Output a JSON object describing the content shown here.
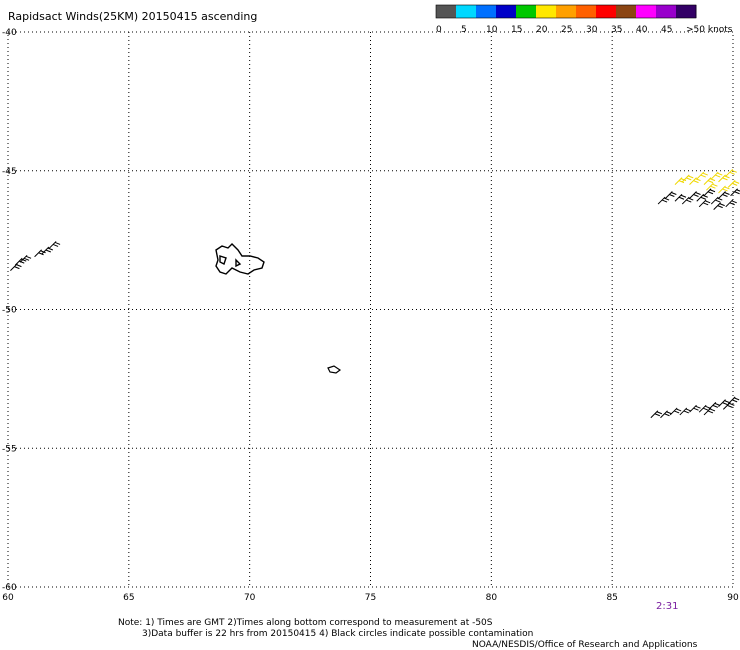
{
  "title": "Rapidsact Winds(25KM) 20150415 ascending",
  "legend": {
    "colors": [
      "#555555",
      "#00d8ff",
      "#0070ff",
      "#0000c8",
      "#00c800",
      "#ffe800",
      "#ffa000",
      "#ff6000",
      "#ff0000",
      "#8b4513",
      "#ff00ff",
      "#9900cc",
      "#330066"
    ],
    "labels": [
      "0",
      "5",
      "10",
      "15",
      "20",
      "25",
      "30",
      "35",
      "40",
      "45",
      ">50 knots"
    ]
  },
  "map": {
    "lon_range": [
      60,
      90
    ],
    "lat_range": [
      -40,
      -60
    ],
    "x_ticks": [
      "60",
      "65",
      "70",
      "75",
      "80",
      "85",
      "90"
    ],
    "y_ticks": [
      "-40",
      "-45",
      "-50",
      "-55",
      "-60"
    ],
    "grid": "dotted"
  },
  "time_label": "2:31",
  "notes": {
    "line1": "Note: 1) Times are GMT 2)Times along bottom correspond to measurement at -50S",
    "line2": "3)Data buffer is 22 hrs from 20150415 4) Black circles indicate possible contamination",
    "line3": "NOAA/NESDIS/Office of Research and Applications"
  },
  "wind_swaths": [
    {
      "name": "west-barbs",
      "color": "#000000",
      "points": [
        [
          60.1,
          -48.6
        ],
        [
          60.3,
          -48.4
        ],
        [
          60.5,
          -48.3
        ],
        [
          61.1,
          -48.1
        ],
        [
          61.4,
          -48.0
        ],
        [
          61.7,
          -47.8
        ]
      ]
    },
    {
      "name": "ne-yellow-barbs",
      "color": "#f0d800",
      "points": [
        [
          87.6,
          -45.5
        ],
        [
          87.9,
          -45.4
        ],
        [
          88.2,
          -45.5
        ],
        [
          88.5,
          -45.3
        ],
        [
          88.8,
          -45.5
        ],
        [
          89.1,
          -45.3
        ],
        [
          89.4,
          -45.4
        ],
        [
          89.7,
          -45.2
        ],
        [
          89.8,
          -45.6
        ],
        [
          88.9,
          -45.7
        ],
        [
          89.4,
          -45.8
        ]
      ]
    },
    {
      "name": "ne-black-barbs",
      "color": "#000000",
      "points": [
        [
          86.9,
          -46.2
        ],
        [
          87.2,
          -46.0
        ],
        [
          87.6,
          -46.1
        ],
        [
          87.9,
          -46.2
        ],
        [
          88.2,
          -46.0
        ],
        [
          88.5,
          -46.1
        ],
        [
          88.8,
          -45.9
        ],
        [
          89.1,
          -46.2
        ],
        [
          89.4,
          -46.0
        ],
        [
          89.7,
          -46.3
        ],
        [
          89.9,
          -45.9
        ],
        [
          88.6,
          -46.3
        ],
        [
          89.2,
          -46.4
        ]
      ]
    },
    {
      "name": "se-black-barbs",
      "color": "#000000",
      "points": [
        [
          86.6,
          -53.9
        ],
        [
          87.0,
          -53.9
        ],
        [
          87.4,
          -53.8
        ],
        [
          87.8,
          -53.8
        ],
        [
          88.2,
          -53.7
        ],
        [
          88.6,
          -53.7
        ],
        [
          89.0,
          -53.6
        ],
        [
          89.4,
          -53.5
        ],
        [
          89.8,
          -53.4
        ],
        [
          88.8,
          -53.8
        ],
        [
          89.6,
          -53.6
        ]
      ]
    }
  ]
}
